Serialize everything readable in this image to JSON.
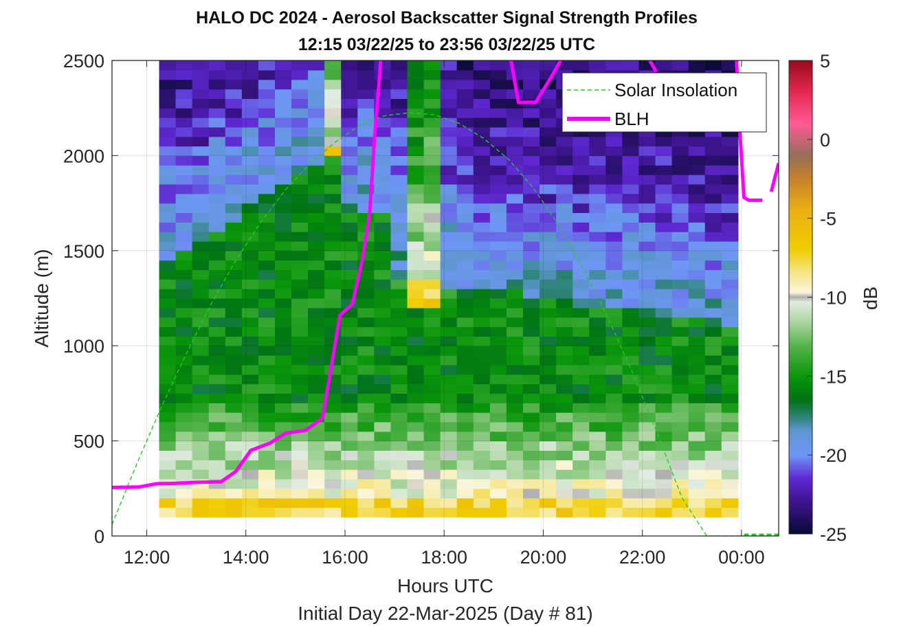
{
  "chart_data": {
    "type": "heatmap",
    "title": "HALO DC 2024 - Aerosol Backscatter Signal Strength Profiles",
    "subtitle": "12:15 03/22/25 to 23:56 03/22/25  UTC",
    "xlabel": "Hours UTC",
    "xlabel2": "Initial Day 22-Mar-2025 (Day # 81)",
    "ylabel": "Altitude (m)",
    "colorbar_label": "dB",
    "xlim": [
      11.3,
      24.75
    ],
    "ylim": [
      0,
      2500
    ],
    "clim": [
      -25,
      5
    ],
    "grid": true,
    "legend_position": "top-right",
    "x_ticks": [
      {
        "value": 12,
        "label": "12:00"
      },
      {
        "value": 14,
        "label": "14:00"
      },
      {
        "value": 16,
        "label": "16:00"
      },
      {
        "value": 18,
        "label": "18:00"
      },
      {
        "value": 20,
        "label": "20:00"
      },
      {
        "value": 22,
        "label": "22:00"
      },
      {
        "value": 24,
        "label": "00:00"
      }
    ],
    "y_ticks": [
      {
        "value": 0,
        "label": "0"
      },
      {
        "value": 500,
        "label": "500"
      },
      {
        "value": 1000,
        "label": "1000"
      },
      {
        "value": 1500,
        "label": "1500"
      },
      {
        "value": 2000,
        "label": "2000"
      },
      {
        "value": 2500,
        "label": "2500"
      }
    ],
    "c_ticks": [
      {
        "value": 5,
        "label": "5"
      },
      {
        "value": 0,
        "label": "0"
      },
      {
        "value": -5,
        "label": "-5"
      },
      {
        "value": -10,
        "label": "-10"
      },
      {
        "value": -15,
        "label": "-15"
      },
      {
        "value": -20,
        "label": "-20"
      },
      {
        "value": -25,
        "label": "-25"
      }
    ],
    "heatmap": {
      "x_start": 12.25,
      "x_end": 23.93,
      "y_start": 100,
      "y_end": 2500,
      "cols": 35,
      "rows": 48
    },
    "series": [
      {
        "name": "Solar Insolation",
        "style": "dashed",
        "color": "#22cc22",
        "x": [
          11.3,
          11.8,
          12.3,
          12.8,
          13.3,
          13.8,
          14.3,
          14.8,
          15.3,
          15.8,
          16.3,
          16.8,
          17.3,
          17.8,
          18.3,
          18.8,
          19.3,
          19.8,
          20.3,
          20.8,
          21.3,
          21.8,
          22.3,
          22.8,
          23.3,
          23.8,
          24.1,
          24.75
        ],
        "y": [
          60,
          380,
          680,
          960,
          1220,
          1450,
          1650,
          1820,
          1960,
          2070,
          2160,
          2210,
          2225,
          2215,
          2170,
          2090,
          1980,
          1830,
          1640,
          1410,
          1150,
          860,
          540,
          200,
          0,
          0,
          0,
          0
        ]
      },
      {
        "name": "BLH",
        "style": "solid",
        "color": "#ff00ff",
        "segments": [
          {
            "x": [
              11.3,
              11.85,
              12.2,
              12.6,
              13.0,
              13.5,
              13.8,
              14.1,
              14.5,
              14.8,
              15.2,
              15.55,
              15.9,
              16.15,
              16.35,
              16.5,
              16.6,
              16.7,
              16.72
            ],
            "y": [
              255,
              258,
              275,
              277,
              282,
              285,
              340,
              450,
              490,
              540,
              555,
              620,
              1160,
              1220,
              1450,
              1700,
              2100,
              2420,
              2500
            ]
          },
          {
            "x": [
              19.35,
              19.5,
              19.85,
              20.2,
              20.35
            ],
            "y": [
              2500,
              2280,
              2280,
              2430,
              2500
            ]
          },
          {
            "x": [
              22.15,
              22.28
            ],
            "y": [
              2500,
              2440
            ]
          },
          {
            "x": [
              23.9,
              23.95,
              24.05,
              24.15,
              24.35,
              24.42
            ],
            "y": [
              2500,
              2200,
              1780,
              1765,
              1765,
              1765
            ]
          },
          {
            "x": [
              24.6,
              24.75
            ],
            "y": [
              1810,
              1960
            ]
          }
        ]
      }
    ]
  }
}
